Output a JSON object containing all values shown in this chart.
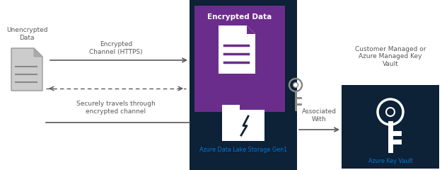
{
  "bg_color": "#ffffff",
  "dark_blue": "#0d2137",
  "purple": "#6b2d8b",
  "azure_blue": "#0078d4",
  "text_gray": "#595959",
  "white": "#ffffff",
  "light_gray": "#b0b0b0",
  "mid_gray": "#888888",
  "unencrypted_label": "Unencrypted\nData",
  "encrypted_channel_label": "Encrypted\nChannel (HTTPS)",
  "secure_travel_label": "Securely travels through\nencrypted channel",
  "encrypted_data_label": "Encrypted Data",
  "adls_label": "Azure Data Lake Storage Gen1",
  "associated_label": "Associated\nWith",
  "customer_managed_label": "Customer Managed or\nAzure Managed Key\nVault",
  "key_vault_label": "Azure Key Vault"
}
